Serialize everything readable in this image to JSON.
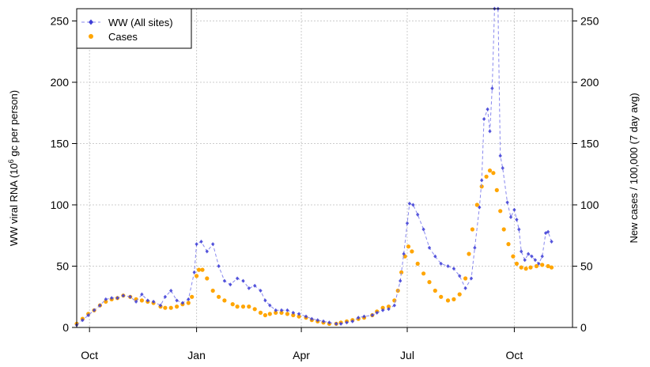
{
  "chart_data": {
    "type": "line",
    "x_axis": {
      "type": "date",
      "range": [
        "2021-09-20",
        "2022-11-20"
      ],
      "ticks": [
        {
          "date": "2021-10-01",
          "label": "Oct"
        },
        {
          "date": "2022-01-01",
          "label": "Jan"
        },
        {
          "date": "2022-04-01",
          "label": "Apr"
        },
        {
          "date": "2022-07-01",
          "label": "Jul"
        },
        {
          "date": "2022-10-01",
          "label": "Oct"
        }
      ]
    },
    "y_left": {
      "label_parts": [
        "WW viral RNA (10",
        "6",
        " gc per person)"
      ],
      "range": [
        0,
        260
      ],
      "ticks": [
        0,
        50,
        100,
        150,
        200,
        250
      ]
    },
    "y_right": {
      "label": "New cases / 100,000 (7 day avg)",
      "range": [
        0,
        260
      ],
      "ticks": [
        0,
        50,
        100,
        150,
        200,
        250
      ]
    },
    "grid": true,
    "legend": {
      "position": "top-left",
      "entries": [
        "WW (All sites)",
        "Cases"
      ]
    },
    "colors": {
      "ww": "#3d3dd6",
      "ww_line": "#8888ee",
      "cases": "#ffa500",
      "grid": "#cccccc",
      "axis": "#000000"
    },
    "series": [
      {
        "name": "WW (All sites)",
        "style": "dashed line with diamond points",
        "points": [
          [
            "2021-09-20",
            2
          ],
          [
            "2021-09-25",
            6
          ],
          [
            "2021-09-30",
            10
          ],
          [
            "2021-10-05",
            14
          ],
          [
            "2021-10-10",
            18
          ],
          [
            "2021-10-15",
            23
          ],
          [
            "2021-10-20",
            24
          ],
          [
            "2021-10-25",
            24
          ],
          [
            "2021-10-30",
            26
          ],
          [
            "2021-11-05",
            25
          ],
          [
            "2021-11-10",
            21
          ],
          [
            "2021-11-15",
            27
          ],
          [
            "2021-11-20",
            22
          ],
          [
            "2021-11-25",
            21
          ],
          [
            "2021-12-01",
            18
          ],
          [
            "2021-12-05",
            25
          ],
          [
            "2021-12-10",
            30
          ],
          [
            "2021-12-15",
            22
          ],
          [
            "2021-12-20",
            20
          ],
          [
            "2021-12-25",
            23
          ],
          [
            "2021-12-30",
            45
          ],
          [
            "2022-01-01",
            68
          ],
          [
            "2022-01-05",
            70
          ],
          [
            "2022-01-10",
            62
          ],
          [
            "2022-01-15",
            68
          ],
          [
            "2022-01-20",
            50
          ],
          [
            "2022-01-25",
            38
          ],
          [
            "2022-01-30",
            35
          ],
          [
            "2022-02-05",
            40
          ],
          [
            "2022-02-10",
            38
          ],
          [
            "2022-02-15",
            32
          ],
          [
            "2022-02-20",
            34
          ],
          [
            "2022-02-25",
            30
          ],
          [
            "2022-03-01",
            22
          ],
          [
            "2022-03-05",
            18
          ],
          [
            "2022-03-10",
            14
          ],
          [
            "2022-03-15",
            14
          ],
          [
            "2022-03-20",
            14
          ],
          [
            "2022-03-25",
            12
          ],
          [
            "2022-03-30",
            11
          ],
          [
            "2022-04-05",
            9
          ],
          [
            "2022-04-10",
            7
          ],
          [
            "2022-04-15",
            6
          ],
          [
            "2022-04-20",
            5
          ],
          [
            "2022-04-25",
            4
          ],
          [
            "2022-05-01",
            3
          ],
          [
            "2022-05-05",
            3
          ],
          [
            "2022-05-10",
            4
          ],
          [
            "2022-05-15",
            5
          ],
          [
            "2022-05-20",
            8
          ],
          [
            "2022-05-25",
            9
          ],
          [
            "2022-06-01",
            10
          ],
          [
            "2022-06-05",
            12
          ],
          [
            "2022-06-10",
            14
          ],
          [
            "2022-06-15",
            15
          ],
          [
            "2022-06-20",
            18
          ],
          [
            "2022-06-25",
            38
          ],
          [
            "2022-06-28",
            60
          ],
          [
            "2022-07-01",
            85
          ],
          [
            "2022-07-03",
            101
          ],
          [
            "2022-07-06",
            100
          ],
          [
            "2022-07-10",
            92
          ],
          [
            "2022-07-15",
            80
          ],
          [
            "2022-07-20",
            65
          ],
          [
            "2022-07-25",
            58
          ],
          [
            "2022-07-30",
            52
          ],
          [
            "2022-08-05",
            50
          ],
          [
            "2022-08-10",
            48
          ],
          [
            "2022-08-15",
            42
          ],
          [
            "2022-08-20",
            32
          ],
          [
            "2022-08-25",
            40
          ],
          [
            "2022-08-28",
            65
          ],
          [
            "2022-09-01",
            98
          ],
          [
            "2022-09-03",
            120
          ],
          [
            "2022-09-05",
            170
          ],
          [
            "2022-09-08",
            178
          ],
          [
            "2022-09-10",
            160
          ],
          [
            "2022-09-12",
            195
          ],
          [
            "2022-09-14",
            260
          ],
          [
            "2022-09-17",
            260
          ],
          [
            "2022-09-19",
            140
          ],
          [
            "2022-09-21",
            130
          ],
          [
            "2022-09-25",
            102
          ],
          [
            "2022-09-28",
            90
          ],
          [
            "2022-10-01",
            96
          ],
          [
            "2022-10-03",
            88
          ],
          [
            "2022-10-05",
            80
          ],
          [
            "2022-10-07",
            62
          ],
          [
            "2022-10-10",
            55
          ],
          [
            "2022-10-13",
            60
          ],
          [
            "2022-10-16",
            58
          ],
          [
            "2022-10-19",
            55
          ],
          [
            "2022-10-22",
            52
          ],
          [
            "2022-10-25",
            58
          ],
          [
            "2022-10-28",
            77
          ],
          [
            "2022-10-30",
            78
          ],
          [
            "2022-11-02",
            70
          ]
        ]
      },
      {
        "name": "Cases",
        "style": "points",
        "points": [
          [
            "2021-09-20",
            3
          ],
          [
            "2021-09-25",
            7
          ],
          [
            "2021-09-30",
            11
          ],
          [
            "2021-10-05",
            14
          ],
          [
            "2021-10-10",
            18
          ],
          [
            "2021-10-15",
            21
          ],
          [
            "2021-10-20",
            23
          ],
          [
            "2021-10-25",
            24
          ],
          [
            "2021-10-30",
            26
          ],
          [
            "2021-11-05",
            25
          ],
          [
            "2021-11-10",
            23
          ],
          [
            "2021-11-15",
            22
          ],
          [
            "2021-11-20",
            21
          ],
          [
            "2021-11-25",
            20
          ],
          [
            "2021-12-01",
            17
          ],
          [
            "2021-12-05",
            16
          ],
          [
            "2021-12-10",
            16
          ],
          [
            "2021-12-15",
            17
          ],
          [
            "2021-12-20",
            19
          ],
          [
            "2021-12-25",
            20
          ],
          [
            "2021-12-28",
            25
          ],
          [
            "2022-01-01",
            42
          ],
          [
            "2022-01-03",
            47
          ],
          [
            "2022-01-06",
            47
          ],
          [
            "2022-01-10",
            40
          ],
          [
            "2022-01-15",
            30
          ],
          [
            "2022-01-20",
            25
          ],
          [
            "2022-01-25",
            22
          ],
          [
            "2022-02-01",
            19
          ],
          [
            "2022-02-05",
            17
          ],
          [
            "2022-02-10",
            17
          ],
          [
            "2022-02-15",
            17
          ],
          [
            "2022-02-20",
            15
          ],
          [
            "2022-02-25",
            12
          ],
          [
            "2022-03-01",
            10
          ],
          [
            "2022-03-05",
            11
          ],
          [
            "2022-03-10",
            12
          ],
          [
            "2022-03-15",
            12
          ],
          [
            "2022-03-20",
            11
          ],
          [
            "2022-03-25",
            10
          ],
          [
            "2022-03-30",
            9
          ],
          [
            "2022-04-05",
            8
          ],
          [
            "2022-04-10",
            6
          ],
          [
            "2022-04-15",
            5
          ],
          [
            "2022-04-20",
            4
          ],
          [
            "2022-04-25",
            3
          ],
          [
            "2022-05-01",
            3
          ],
          [
            "2022-05-05",
            4
          ],
          [
            "2022-05-10",
            5
          ],
          [
            "2022-05-15",
            6
          ],
          [
            "2022-05-20",
            7
          ],
          [
            "2022-05-25",
            8
          ],
          [
            "2022-06-01",
            10
          ],
          [
            "2022-06-05",
            13
          ],
          [
            "2022-06-10",
            16
          ],
          [
            "2022-06-15",
            17
          ],
          [
            "2022-06-20",
            22
          ],
          [
            "2022-06-23",
            30
          ],
          [
            "2022-06-26",
            45
          ],
          [
            "2022-06-29",
            58
          ],
          [
            "2022-07-02",
            66
          ],
          [
            "2022-07-05",
            62
          ],
          [
            "2022-07-10",
            52
          ],
          [
            "2022-07-15",
            44
          ],
          [
            "2022-07-20",
            37
          ],
          [
            "2022-07-25",
            30
          ],
          [
            "2022-07-30",
            25
          ],
          [
            "2022-08-05",
            22
          ],
          [
            "2022-08-10",
            23
          ],
          [
            "2022-08-15",
            27
          ],
          [
            "2022-08-20",
            40
          ],
          [
            "2022-08-23",
            60
          ],
          [
            "2022-08-26",
            80
          ],
          [
            "2022-08-30",
            100
          ],
          [
            "2022-09-03",
            115
          ],
          [
            "2022-09-07",
            123
          ],
          [
            "2022-09-10",
            128
          ],
          [
            "2022-09-13",
            126
          ],
          [
            "2022-09-16",
            112
          ],
          [
            "2022-09-19",
            95
          ],
          [
            "2022-09-22",
            80
          ],
          [
            "2022-09-26",
            68
          ],
          [
            "2022-09-30",
            58
          ],
          [
            "2022-10-03",
            52
          ],
          [
            "2022-10-07",
            49
          ],
          [
            "2022-10-11",
            48
          ],
          [
            "2022-10-15",
            49
          ],
          [
            "2022-10-20",
            50
          ],
          [
            "2022-10-25",
            51
          ],
          [
            "2022-10-30",
            50
          ],
          [
            "2022-11-02",
            49
          ]
        ]
      }
    ]
  }
}
